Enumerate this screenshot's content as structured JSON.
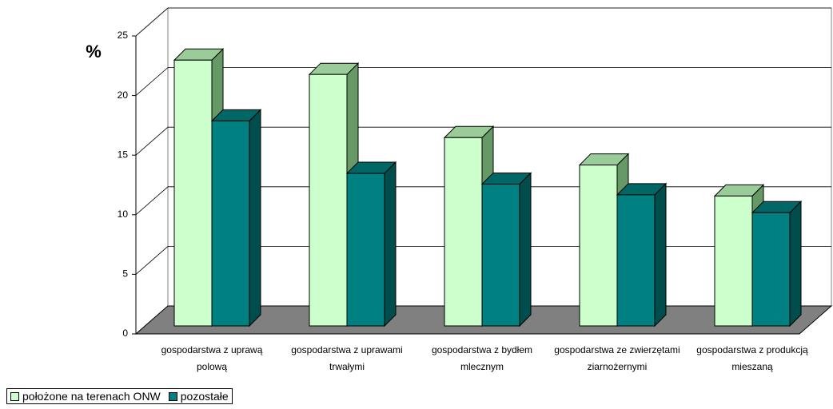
{
  "chart_data": {
    "type": "bar3d",
    "y_label": "%",
    "categories": [
      "gospodarstwa z uprawą polową",
      "gospodarstwa z uprawami trwałymi",
      "gospodarstwa z bydłem mlecznym",
      "gospodarstwa ze zwierzętami ziarnożernymi",
      "gospodarstwa z produkcją mieszaną"
    ],
    "series": [
      {
        "name": "położone na terenach ONW",
        "color": "#ccffcc",
        "values": [
          22.3,
          21.1,
          15.8,
          13.5,
          10.9
        ]
      },
      {
        "name": "pozostałe",
        "color": "#008080",
        "values": [
          17.2,
          12.8,
          11.9,
          11.0,
          9.5
        ]
      }
    ],
    "ylim": [
      0,
      25
    ],
    "yticks": [
      0,
      5,
      10,
      15,
      20,
      25
    ],
    "grid": true
  }
}
